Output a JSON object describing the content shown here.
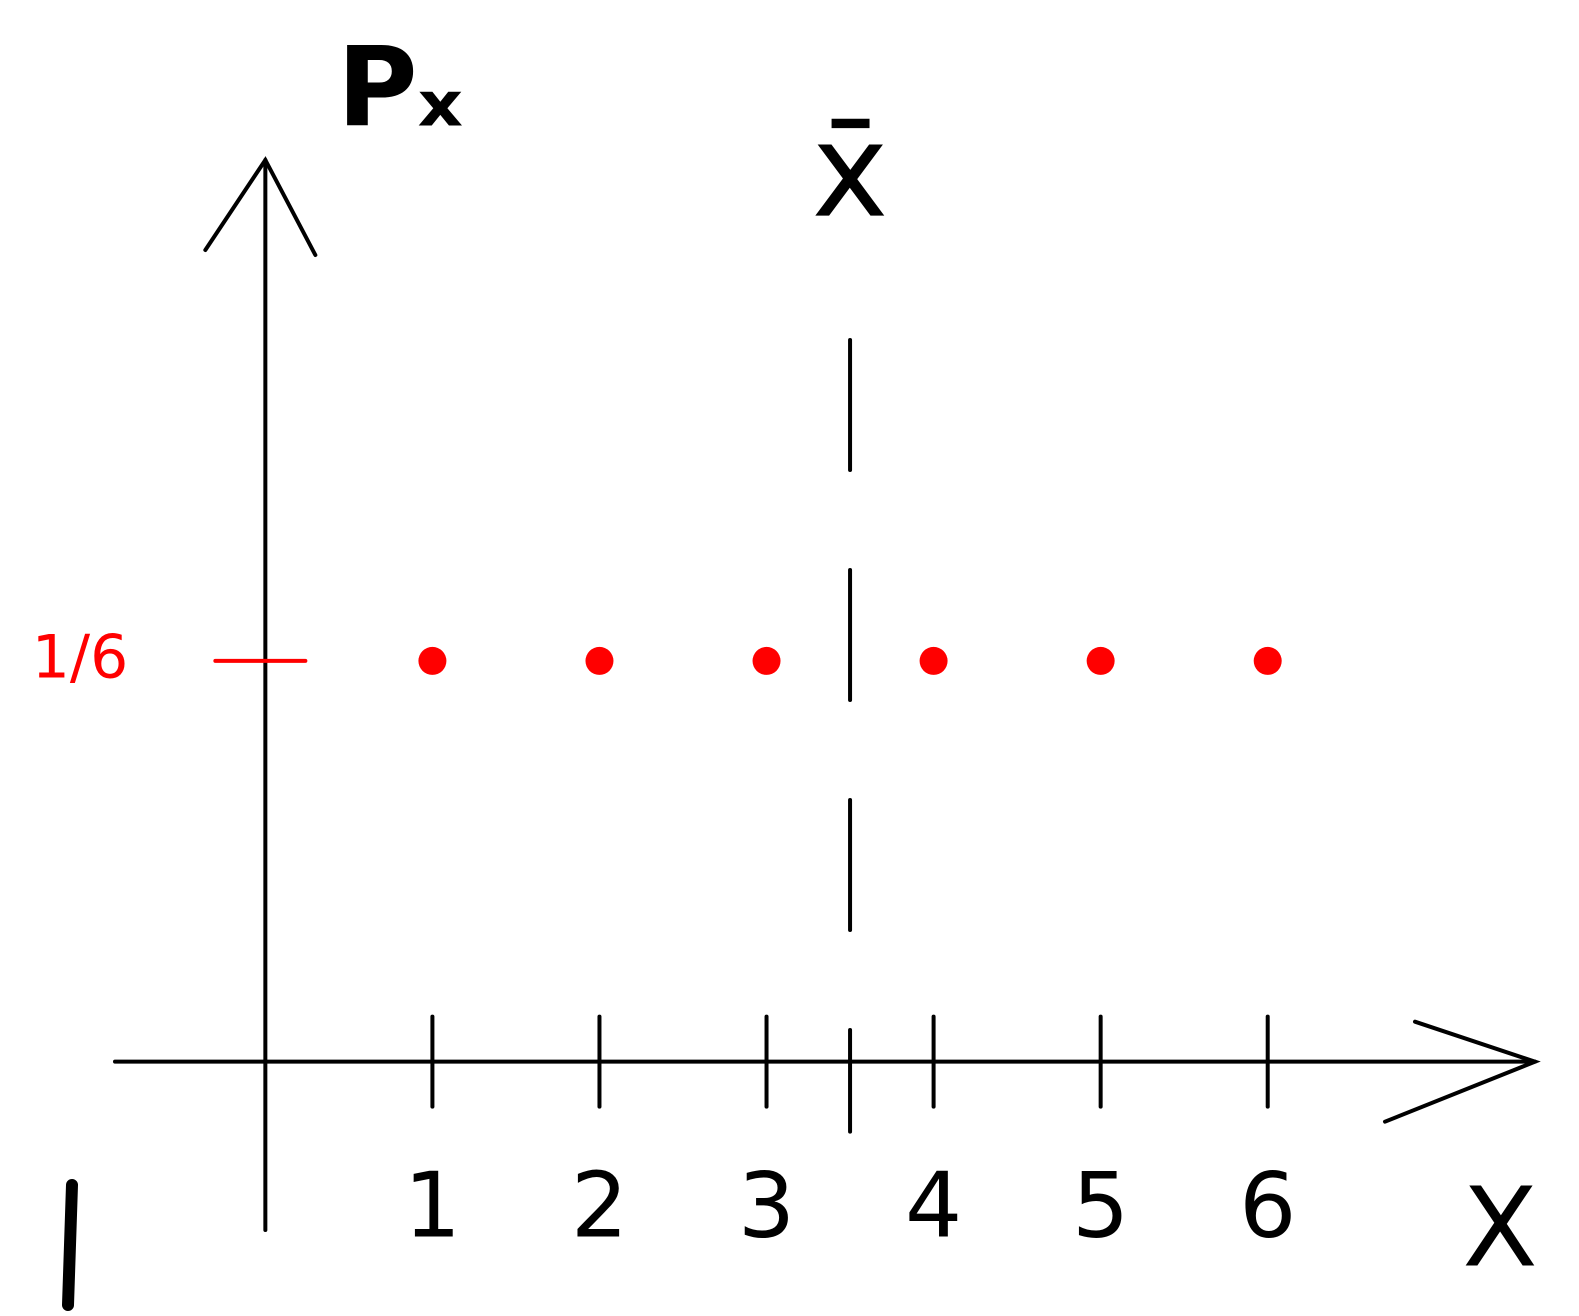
{
  "chart_data": {
    "type": "scatter",
    "title": "Pₓ",
    "x_label": "X",
    "x": [
      1,
      2,
      3,
      4,
      5,
      6
    ],
    "series": [
      {
        "color": "#ff0000",
        "values": [
          0.16666666666666666,
          0.16666666666666666,
          0.16666666666666666,
          0.16666666666666666,
          0.16666666666666666,
          0.16666666666666666
        ]
      }
    ],
    "xlim": [
      -0.9,
      7.6
    ],
    "xticks": [
      1,
      2,
      3,
      4,
      5,
      6
    ],
    "ylim": [
      -0.07,
      0.375
    ],
    "yticks": [
      {
        "value": 0.16666666666666666,
        "label": "1/6"
      }
    ],
    "ytick_color": "#ff0000",
    "mean_line": {
      "label": "x̄",
      "x": 3.5
    }
  }
}
